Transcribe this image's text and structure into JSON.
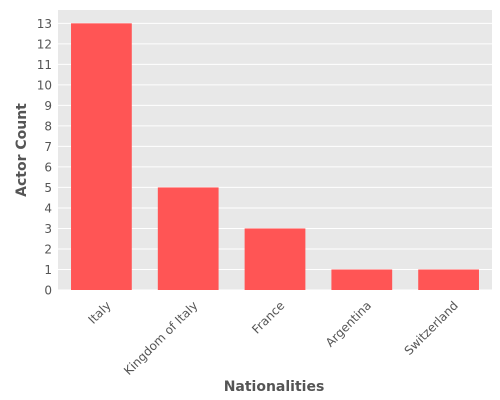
{
  "chart_data": {
    "type": "bar",
    "title": "",
    "xlabel": "Nationalities",
    "ylabel": "Actor Count",
    "categories": [
      "Italy",
      "Kingdom of Italy",
      "France",
      "Argentina",
      "Switzerland"
    ],
    "values": [
      13,
      5,
      3,
      1,
      1
    ],
    "ylim": [
      0,
      13.65
    ],
    "yticks": [
      0,
      1,
      2,
      3,
      4,
      5,
      6,
      7,
      8,
      9,
      10,
      11,
      12,
      13
    ],
    "grid": true,
    "bar_color": "#ff5555",
    "plot_background": "#e8e8e8",
    "grid_color": "#ffffff",
    "text_color": "#555555"
  }
}
